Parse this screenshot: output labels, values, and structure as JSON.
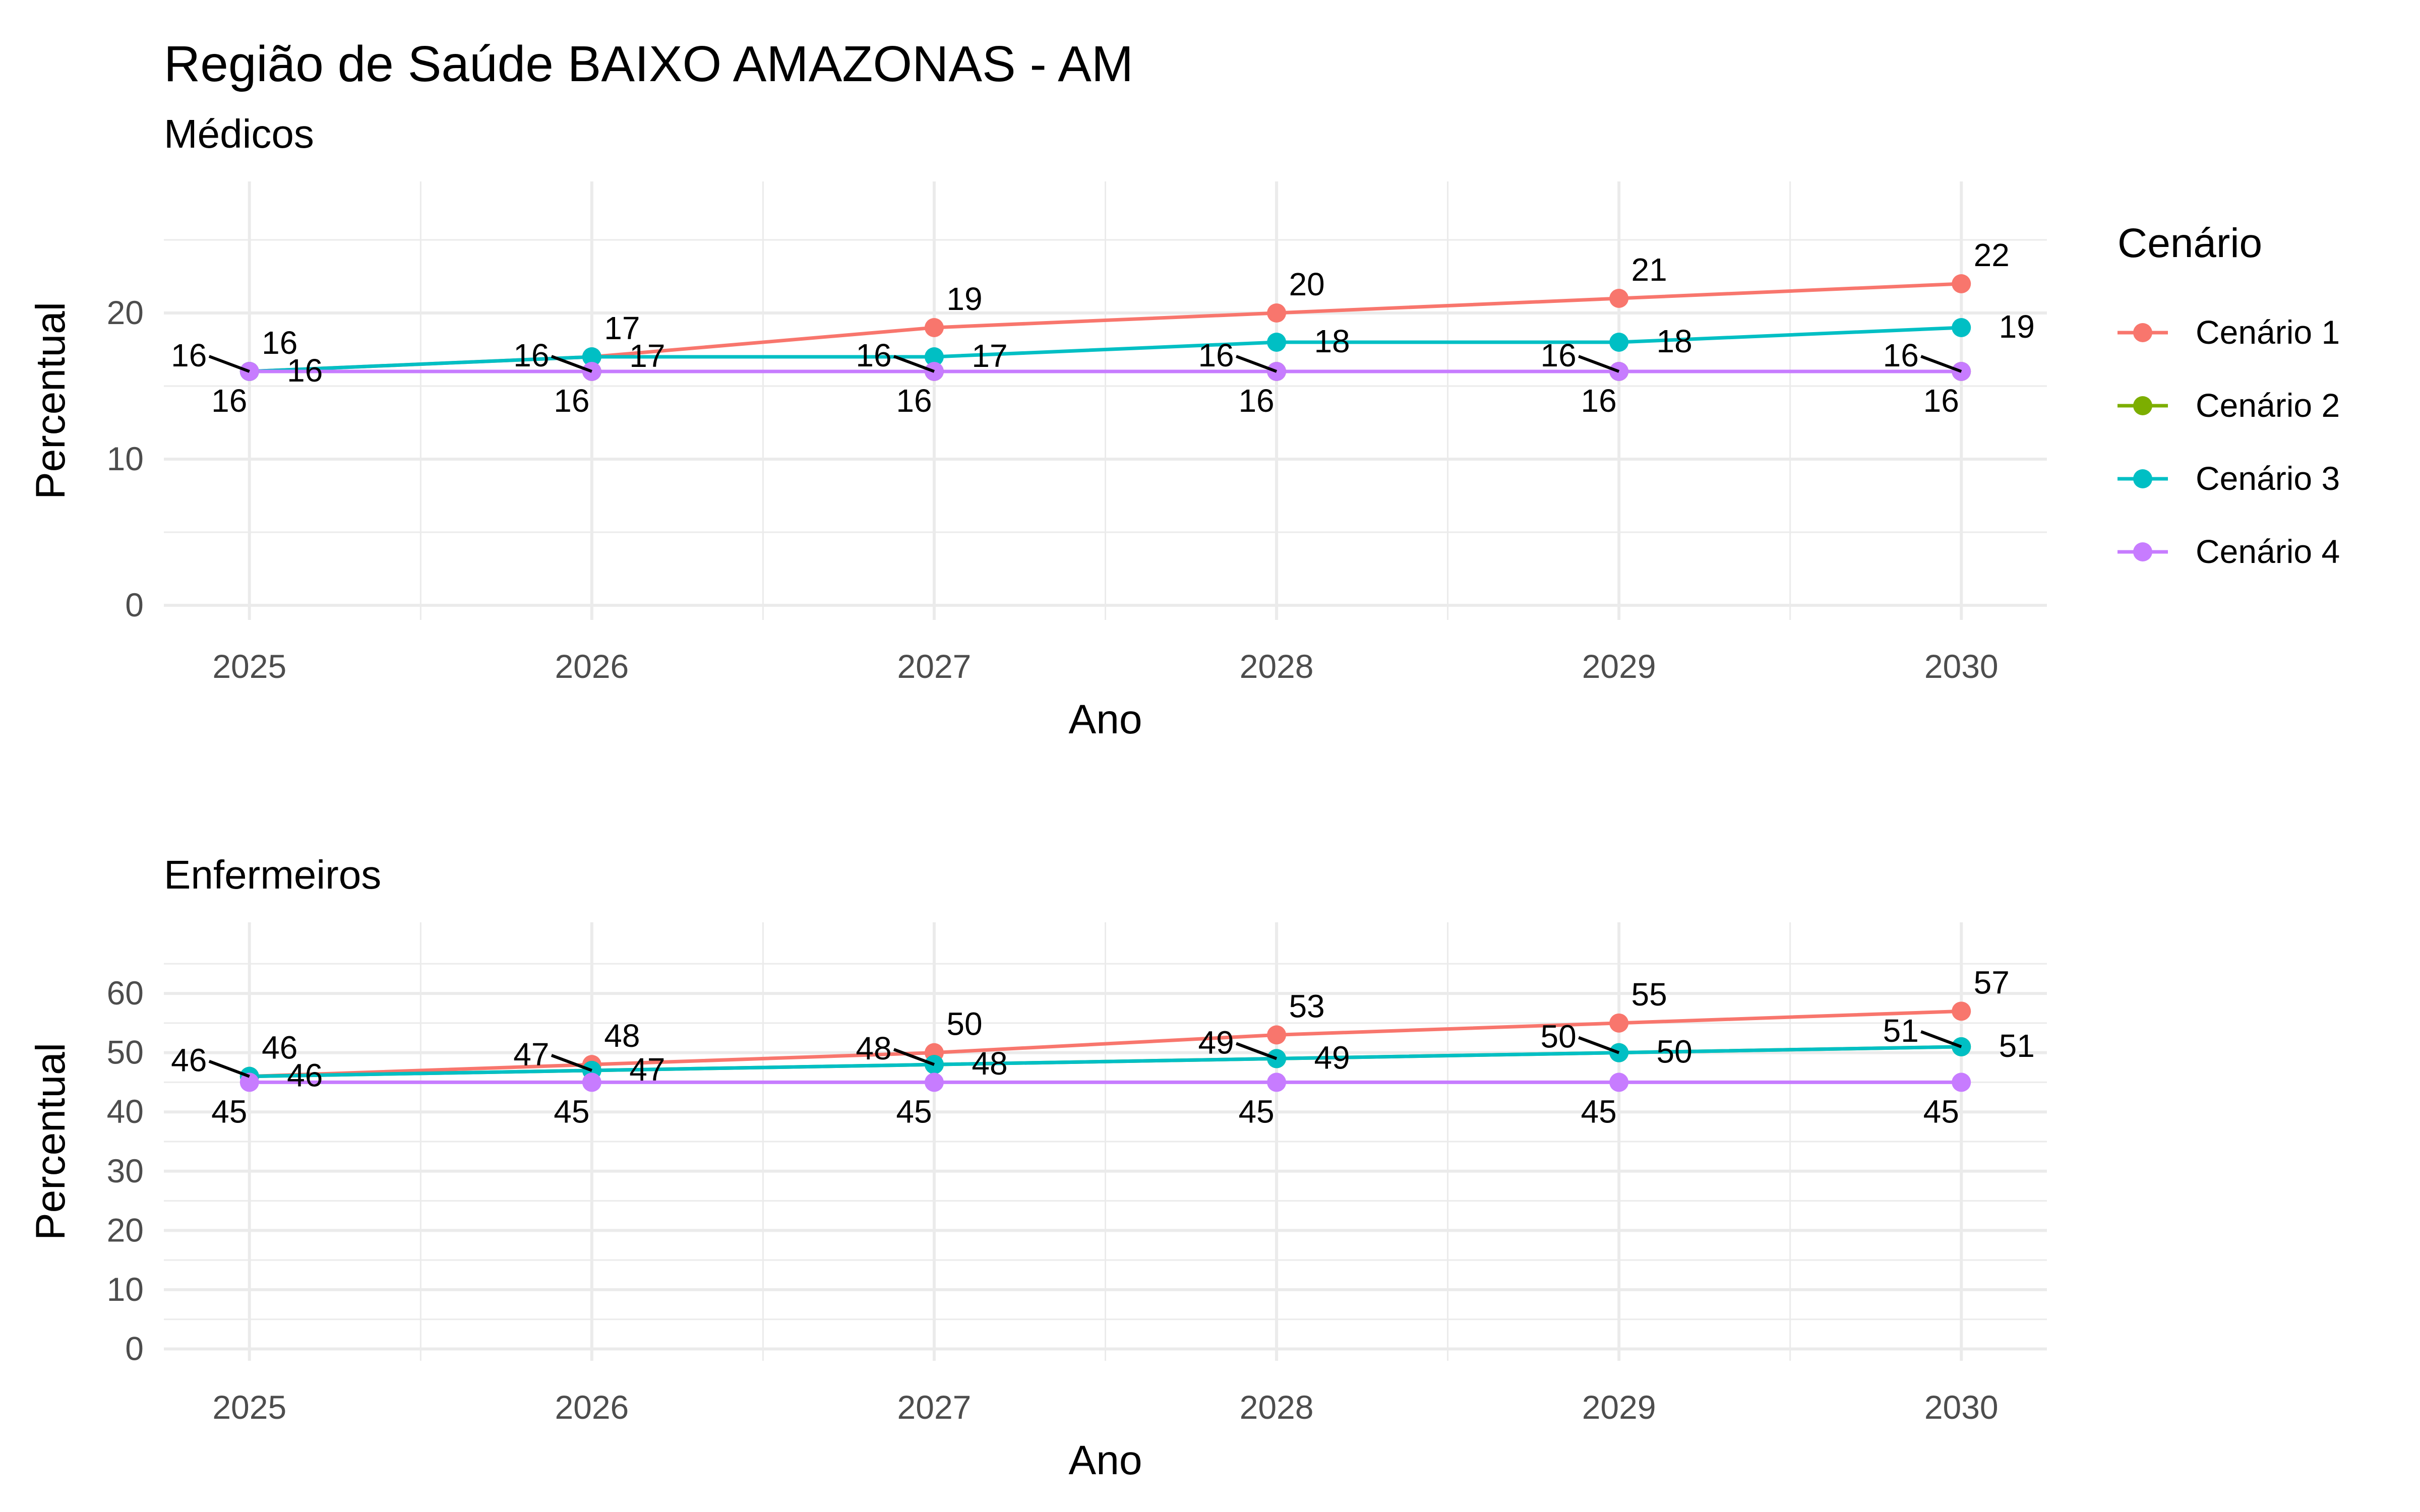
{
  "title": "Região de Saúde BAIXO AMAZONAS - AM",
  "legend": {
    "title": "Cenário",
    "entries": [
      "Cenário 1",
      "Cenário 2",
      "Cenário 3",
      "Cenário 4"
    ]
  },
  "colors": {
    "Cenário 1": "#F8766D",
    "Cenário 2": "#7CAE00",
    "Cenário 3": "#00BFC4",
    "Cenário 4": "#C77CFF",
    "label_line": "#000000",
    "grid": "#EBEBEB"
  },
  "chart_data": [
    {
      "type": "line",
      "title": "Médicos",
      "xlabel": "Ano",
      "ylabel": "Percentual",
      "x": [
        2025,
        2026,
        2027,
        2028,
        2029,
        2030
      ],
      "xlim": [
        2024.75,
        2030.25
      ],
      "ylim": [
        -1,
        29
      ],
      "yticks": [
        0,
        10,
        20
      ],
      "grid": true,
      "legend_position": "right",
      "series": [
        {
          "name": "Cenário 1",
          "values": [
            16,
            17,
            19,
            20,
            21,
            22
          ]
        },
        {
          "name": "Cenário 2",
          "values": [
            16,
            16,
            16,
            16,
            16,
            16
          ]
        },
        {
          "name": "Cenário 3",
          "values": [
            16,
            17,
            17,
            18,
            18,
            19
          ]
        },
        {
          "name": "Cenário 4",
          "values": [
            16,
            16,
            16,
            16,
            16,
            16
          ]
        }
      ]
    },
    {
      "type": "line",
      "title": "Enfermeiros",
      "xlabel": "Ano",
      "ylabel": "Percentual",
      "x": [
        2025,
        2026,
        2027,
        2028,
        2029,
        2030
      ],
      "xlim": [
        2024.75,
        2030.25
      ],
      "ylim": [
        -2,
        72
      ],
      "yticks": [
        0,
        10,
        20,
        30,
        40,
        50,
        60
      ],
      "grid": true,
      "legend_position": "right",
      "series": [
        {
          "name": "Cenário 1",
          "values": [
            46,
            48,
            50,
            53,
            55,
            57
          ]
        },
        {
          "name": "Cenário 2",
          "values": [
            46,
            47,
            48,
            49,
            50,
            51
          ]
        },
        {
          "name": "Cenário 3",
          "values": [
            46,
            47,
            48,
            49,
            50,
            51
          ]
        },
        {
          "name": "Cenário 4",
          "values": [
            45,
            45,
            45,
            45,
            45,
            45
          ]
        }
      ]
    }
  ]
}
